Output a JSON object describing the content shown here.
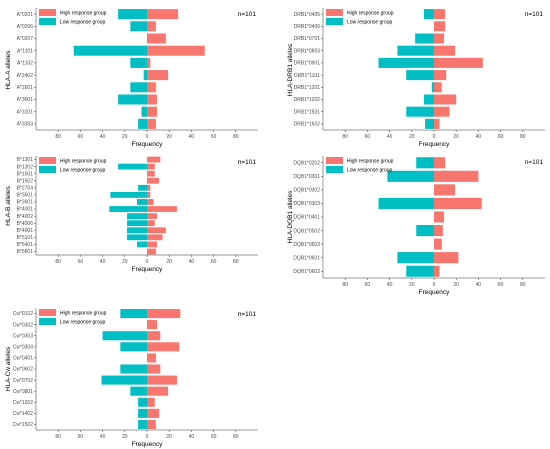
{
  "colors": {
    "high": "#f8766d",
    "low": "#00bfc4",
    "axis": "#333333"
  },
  "chart_data": [
    {
      "type": "bar",
      "ylabel": "HLA-A alleles",
      "xlabel": "Frequency",
      "n_label": "n=101",
      "legend": [
        "High response group",
        "Low response group"
      ],
      "legend_position": "top-left",
      "xlim": [
        -100,
        100
      ],
      "xticks": [
        80,
        60,
        40,
        20,
        0,
        20,
        40,
        60,
        80
      ],
      "categories": [
        "A*0201",
        "A*0206",
        "A*0207",
        "A*1101",
        "A*1102",
        "A*2402",
        "A*2601",
        "A*3001",
        "A*3101",
        "A*3303"
      ],
      "series": [
        {
          "name": "High response group",
          "values": [
            28,
            8,
            17,
            52,
            3,
            19,
            8,
            9,
            9,
            8
          ]
        },
        {
          "name": "Low response group",
          "values": [
            26,
            15,
            0,
            66,
            15,
            3,
            15,
            26,
            5,
            8
          ]
        }
      ]
    },
    {
      "type": "bar",
      "ylabel": "HLA-DRB1 alleles",
      "xlabel": "Frequency",
      "n_label": "n=101",
      "legend": [
        "High response group",
        "Low response group"
      ],
      "legend_position": "top-left",
      "xlim": [
        -100,
        100
      ],
      "xticks": [
        80,
        60,
        40,
        20,
        0,
        20,
        40,
        60,
        80
      ],
      "categories": [
        "DRB1*0405",
        "DRB1*0406",
        "DRB1*0701",
        "DRB1*0803",
        "DRB1*0901",
        "DRB1*1101",
        "DRB1*1201",
        "DRB1*1202",
        "DRB1*1501",
        "DRB1*1602"
      ],
      "series": [
        {
          "name": "High response group",
          "values": [
            10,
            10,
            9,
            19,
            44,
            11,
            7,
            20,
            14,
            5
          ]
        },
        {
          "name": "Low response group",
          "values": [
            9,
            0,
            17,
            33,
            50,
            25,
            2,
            9,
            25,
            8
          ]
        }
      ]
    },
    {
      "type": "bar",
      "ylabel": "HLA-B alleles",
      "xlabel": "Frequency",
      "n_label": "n=101",
      "legend": [
        "High response group",
        "Low response group"
      ],
      "legend_position": "top-left",
      "xlim": [
        -100,
        100
      ],
      "xticks": [
        80,
        60,
        40,
        20,
        0,
        20,
        40,
        60,
        80
      ],
      "categories": [
        "B*1301",
        "B*1302",
        "B*1501",
        "B*1502",
        "B*2704",
        "B*3501",
        "B*3901",
        "B*4001",
        "B*4002",
        "B*4006",
        "B*4601",
        "B*5101",
        "B*5401",
        "B*5801"
      ],
      "series": [
        {
          "name": "High response group",
          "values": [
            12,
            7,
            7,
            11,
            3,
            3,
            6,
            27,
            9,
            7,
            17,
            14,
            9,
            8
          ]
        },
        {
          "name": "Low response group",
          "values": [
            0,
            26,
            0,
            0,
            8,
            33,
            9,
            34,
            18,
            18,
            18,
            18,
            9,
            0
          ]
        }
      ]
    },
    {
      "type": "bar",
      "ylabel": "HLA-DQB1 alleles",
      "xlabel": "Frequency",
      "n_label": "n=101",
      "legend": [
        "High response group",
        "Low response group"
      ],
      "legend_position": "top-left",
      "xlim": [
        -100,
        100
      ],
      "xticks": [
        80,
        60,
        40,
        20,
        0,
        20,
        40,
        60,
        80
      ],
      "categories": [
        "DQB1*0202",
        "DQB1*0301",
        "DQB1*0302",
        "DQB1*0303",
        "DQB1*0401",
        "DQB1*0502",
        "DQB1*0503",
        "DQB1*0601",
        "DQB1*0602"
      ],
      "series": [
        {
          "name": "High response group",
          "values": [
            10,
            40,
            19,
            43,
            9,
            8,
            7,
            22,
            5
          ]
        },
        {
          "name": "Low response group",
          "values": [
            16,
            42,
            0,
            50,
            0,
            16,
            0,
            33,
            25
          ]
        }
      ]
    },
    {
      "type": "bar",
      "ylabel": "HLA-Cw alleles",
      "xlabel": "Frequency",
      "n_label": "n=101",
      "legend": [
        "High response group",
        "Low response group"
      ],
      "legend_position": "top-left",
      "xlim": [
        -100,
        100
      ],
      "xticks": [
        80,
        60,
        40,
        20,
        0,
        20,
        40,
        60,
        80
      ],
      "categories": [
        "Cw*0102",
        "Cw*0302",
        "Cw*0303",
        "Cw*0304",
        "Cw*0401",
        "Cw*0602",
        "Cw*0702",
        "Cw*0801",
        "Cw*1202",
        "Cw*1402",
        "Cw*1502"
      ],
      "series": [
        {
          "name": "High response group",
          "values": [
            30,
            9,
            12,
            29,
            8,
            12,
            27,
            19,
            7,
            11,
            8
          ]
        },
        {
          "name": "Low response group",
          "values": [
            24,
            0,
            40,
            24,
            0,
            24,
            41,
            15,
            8,
            8,
            8
          ]
        }
      ]
    }
  ]
}
